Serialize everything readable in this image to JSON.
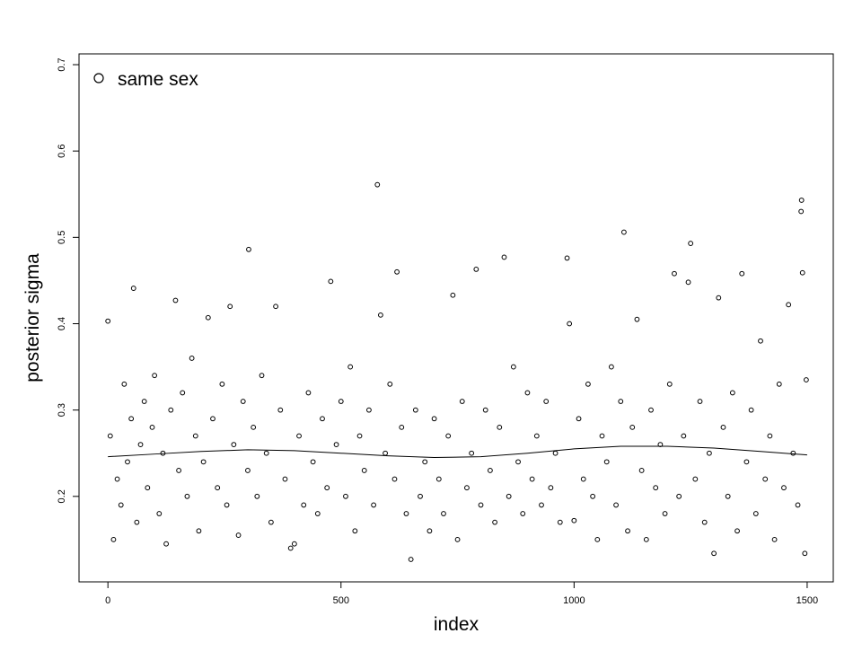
{
  "chart_data": {
    "type": "scatter",
    "x_label": "index",
    "y_label": "posterior sigma",
    "legend": "top-left",
    "series": [
      {
        "name": "same sex",
        "color": "#000000",
        "x": [
          0,
          5,
          12,
          20,
          28,
          35,
          42,
          50,
          55,
          62,
          70,
          78,
          85,
          95,
          100,
          110,
          118,
          125,
          135,
          145,
          152,
          160,
          170,
          180,
          188,
          195,
          205,
          215,
          225,
          235,
          245,
          255,
          262,
          270,
          280,
          290,
          300,
          302,
          312,
          320,
          330,
          340,
          350,
          360,
          370,
          380,
          392,
          400,
          410,
          420,
          430,
          440,
          450,
          460,
          470,
          478,
          490,
          500,
          510,
          520,
          530,
          540,
          550,
          560,
          570,
          578,
          585,
          595,
          605,
          615,
          620,
          630,
          640,
          650,
          660,
          670,
          680,
          690,
          700,
          710,
          720,
          730,
          740,
          750,
          760,
          770,
          780,
          790,
          800,
          810,
          820,
          830,
          840,
          850,
          860,
          870,
          880,
          890,
          900,
          910,
          920,
          930,
          940,
          950,
          960,
          970,
          985,
          990,
          1000,
          1010,
          1020,
          1030,
          1040,
          1050,
          1060,
          1070,
          1080,
          1090,
          1100,
          1107,
          1115,
          1125,
          1135,
          1145,
          1155,
          1165,
          1175,
          1185,
          1195,
          1205,
          1215,
          1225,
          1235,
          1245,
          1250,
          1260,
          1270,
          1280,
          1290,
          1300,
          1310,
          1320,
          1330,
          1340,
          1350,
          1360,
          1370,
          1380,
          1390,
          1400,
          1410,
          1420,
          1430,
          1440,
          1450,
          1460,
          1470,
          1480,
          1487,
          1488,
          1490,
          1495,
          1498
        ],
        "values": [
          0.403,
          0.27,
          0.15,
          0.22,
          0.19,
          0.33,
          0.24,
          0.29,
          0.441,
          0.17,
          0.26,
          0.31,
          0.21,
          0.28,
          0.34,
          0.18,
          0.25,
          0.145,
          0.3,
          0.427,
          0.23,
          0.32,
          0.2,
          0.36,
          0.27,
          0.16,
          0.24,
          0.407,
          0.29,
          0.21,
          0.33,
          0.19,
          0.42,
          0.26,
          0.155,
          0.31,
          0.23,
          0.486,
          0.28,
          0.2,
          0.34,
          0.25,
          0.17,
          0.42,
          0.3,
          0.22,
          0.14,
          0.145,
          0.27,
          0.19,
          0.32,
          0.24,
          0.18,
          0.29,
          0.21,
          0.449,
          0.26,
          0.31,
          0.2,
          0.35,
          0.16,
          0.27,
          0.23,
          0.3,
          0.19,
          0.561,
          0.41,
          0.25,
          0.33,
          0.22,
          0.46,
          0.28,
          0.18,
          0.127,
          0.3,
          0.2,
          0.24,
          0.16,
          0.29,
          0.22,
          0.18,
          0.27,
          0.433,
          0.15,
          0.31,
          0.21,
          0.25,
          0.463,
          0.19,
          0.3,
          0.23,
          0.17,
          0.28,
          0.477,
          0.2,
          0.35,
          0.24,
          0.18,
          0.32,
          0.22,
          0.27,
          0.19,
          0.31,
          0.21,
          0.25,
          0.17,
          0.476,
          0.4,
          0.172,
          0.29,
          0.22,
          0.33,
          0.2,
          0.15,
          0.27,
          0.24,
          0.35,
          0.19,
          0.31,
          0.506,
          0.16,
          0.28,
          0.405,
          0.23,
          0.15,
          0.3,
          0.21,
          0.26,
          0.18,
          0.33,
          0.458,
          0.2,
          0.27,
          0.448,
          0.493,
          0.22,
          0.31,
          0.17,
          0.25,
          0.134,
          0.43,
          0.28,
          0.2,
          0.32,
          0.16,
          0.458,
          0.24,
          0.3,
          0.18,
          0.38,
          0.22,
          0.27,
          0.15,
          0.33,
          0.21,
          0.422,
          0.25,
          0.19,
          0.53,
          0.543,
          0.459,
          0.134,
          0.335
        ]
      }
    ],
    "trend": {
      "x": [
        0,
        100,
        200,
        300,
        400,
        500,
        600,
        700,
        800,
        900,
        1000,
        1100,
        1200,
        1300,
        1400,
        1500
      ],
      "values": [
        0.246,
        0.249,
        0.252,
        0.254,
        0.253,
        0.25,
        0.247,
        0.245,
        0.246,
        0.25,
        0.255,
        0.258,
        0.258,
        0.256,
        0.252,
        0.248
      ]
    },
    "xlim": [
      -62,
      1556
    ],
    "ylim": [
      0.101,
      0.7125
    ],
    "xticks": [
      0,
      500,
      1000,
      1500
    ],
    "yticks": [
      0.2,
      0.3,
      0.4,
      0.5,
      0.6,
      0.7
    ]
  }
}
